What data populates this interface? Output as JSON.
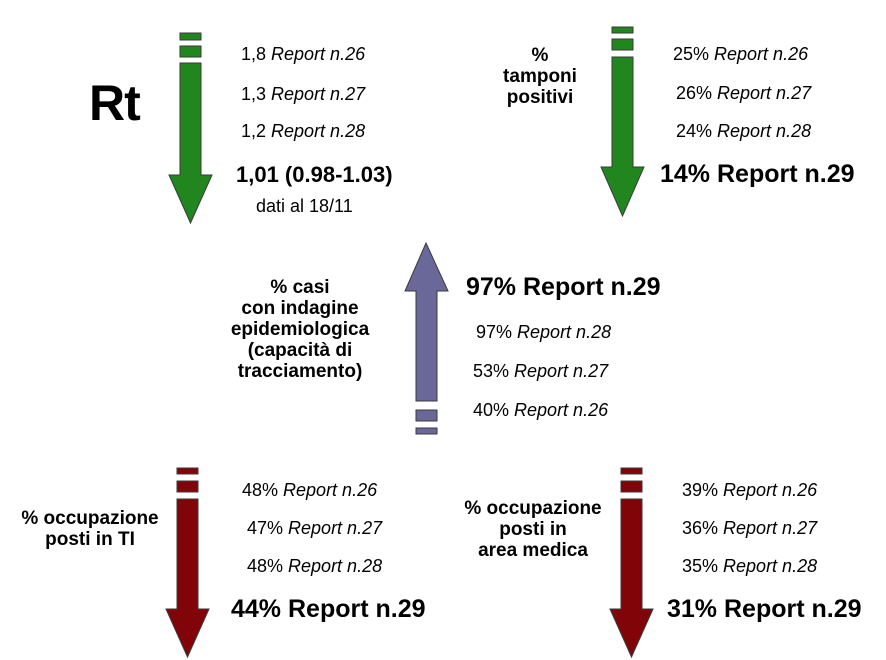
{
  "colors": {
    "green": "#22861f",
    "purple": "#6a6898",
    "red": "#800408",
    "outline": "#3a3a3a"
  },
  "rt": {
    "title": "Rt",
    "rows": [
      {
        "value": "1,8",
        "report": "Report n.26"
      },
      {
        "value": "1,3",
        "report": "Report n.27"
      },
      {
        "value": "1,2",
        "report": "Report n.28"
      }
    ],
    "current": "1,01 (0.98-1.03)",
    "note": "dati al 18/11"
  },
  "tamponi": {
    "label": [
      "%",
      "tamponi",
      "positivi"
    ],
    "rows": [
      {
        "value": "25%",
        "report": "Report n.26"
      },
      {
        "value": "26%",
        "report": "Report n.27"
      },
      {
        "value": "24%",
        "report": "Report n.28"
      }
    ],
    "current": "14% Report n.29"
  },
  "casi": {
    "label": [
      "% casi",
      "con indagine",
      "epidemiologica",
      "(capacità di",
      "tracciamento)"
    ],
    "current": "97% Report n.29",
    "rows": [
      {
        "value": "97%",
        "report": "Report n.28"
      },
      {
        "value": "53%",
        "report": "Report n.27"
      },
      {
        "value": "40%",
        "report": "Report n.26"
      }
    ]
  },
  "ti": {
    "label": [
      "% occupazione",
      "posti in TI"
    ],
    "rows": [
      {
        "value": "48%",
        "report": "Report n.26"
      },
      {
        "value": "47%",
        "report": "Report n.27"
      },
      {
        "value": "48%",
        "report": "Report n.28"
      }
    ],
    "current": "44% Report n.29"
  },
  "area": {
    "label": [
      "% occupazione",
      "posti in",
      "area medica"
    ],
    "rows": [
      {
        "value": "39%",
        "report": "Report n.26"
      },
      {
        "value": "36%",
        "report": "Report n.27"
      },
      {
        "value": "35%",
        "report": "Report n.28"
      }
    ],
    "current": "31% Report n.29"
  }
}
